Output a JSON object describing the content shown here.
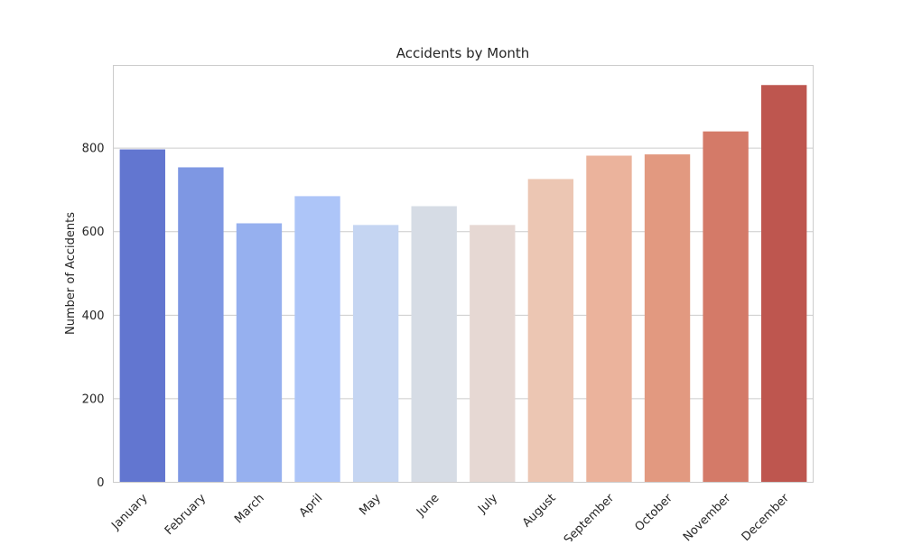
{
  "chart_data": {
    "type": "bar",
    "title": "Accidents by Month",
    "xlabel": "",
    "ylabel": "Number of Accidents",
    "categories": [
      "January",
      "February",
      "March",
      "April",
      "May",
      "June",
      "July",
      "August",
      "September",
      "October",
      "November",
      "December"
    ],
    "values": [
      797,
      754,
      620,
      685,
      616,
      661,
      616,
      726,
      782,
      785,
      840,
      951
    ],
    "colors": [
      "#6276d0",
      "#7e97e3",
      "#96b0ef",
      "#adc5f8",
      "#c5d5f2",
      "#d6dce5",
      "#e6d8d3",
      "#ecc6b3",
      "#ebb39c",
      "#e29980",
      "#d47a68",
      "#be564f"
    ],
    "yticks": [
      0,
      200,
      400,
      600,
      800
    ],
    "ylim": [
      0,
      998
    ],
    "grid": true,
    "legend": false
  }
}
